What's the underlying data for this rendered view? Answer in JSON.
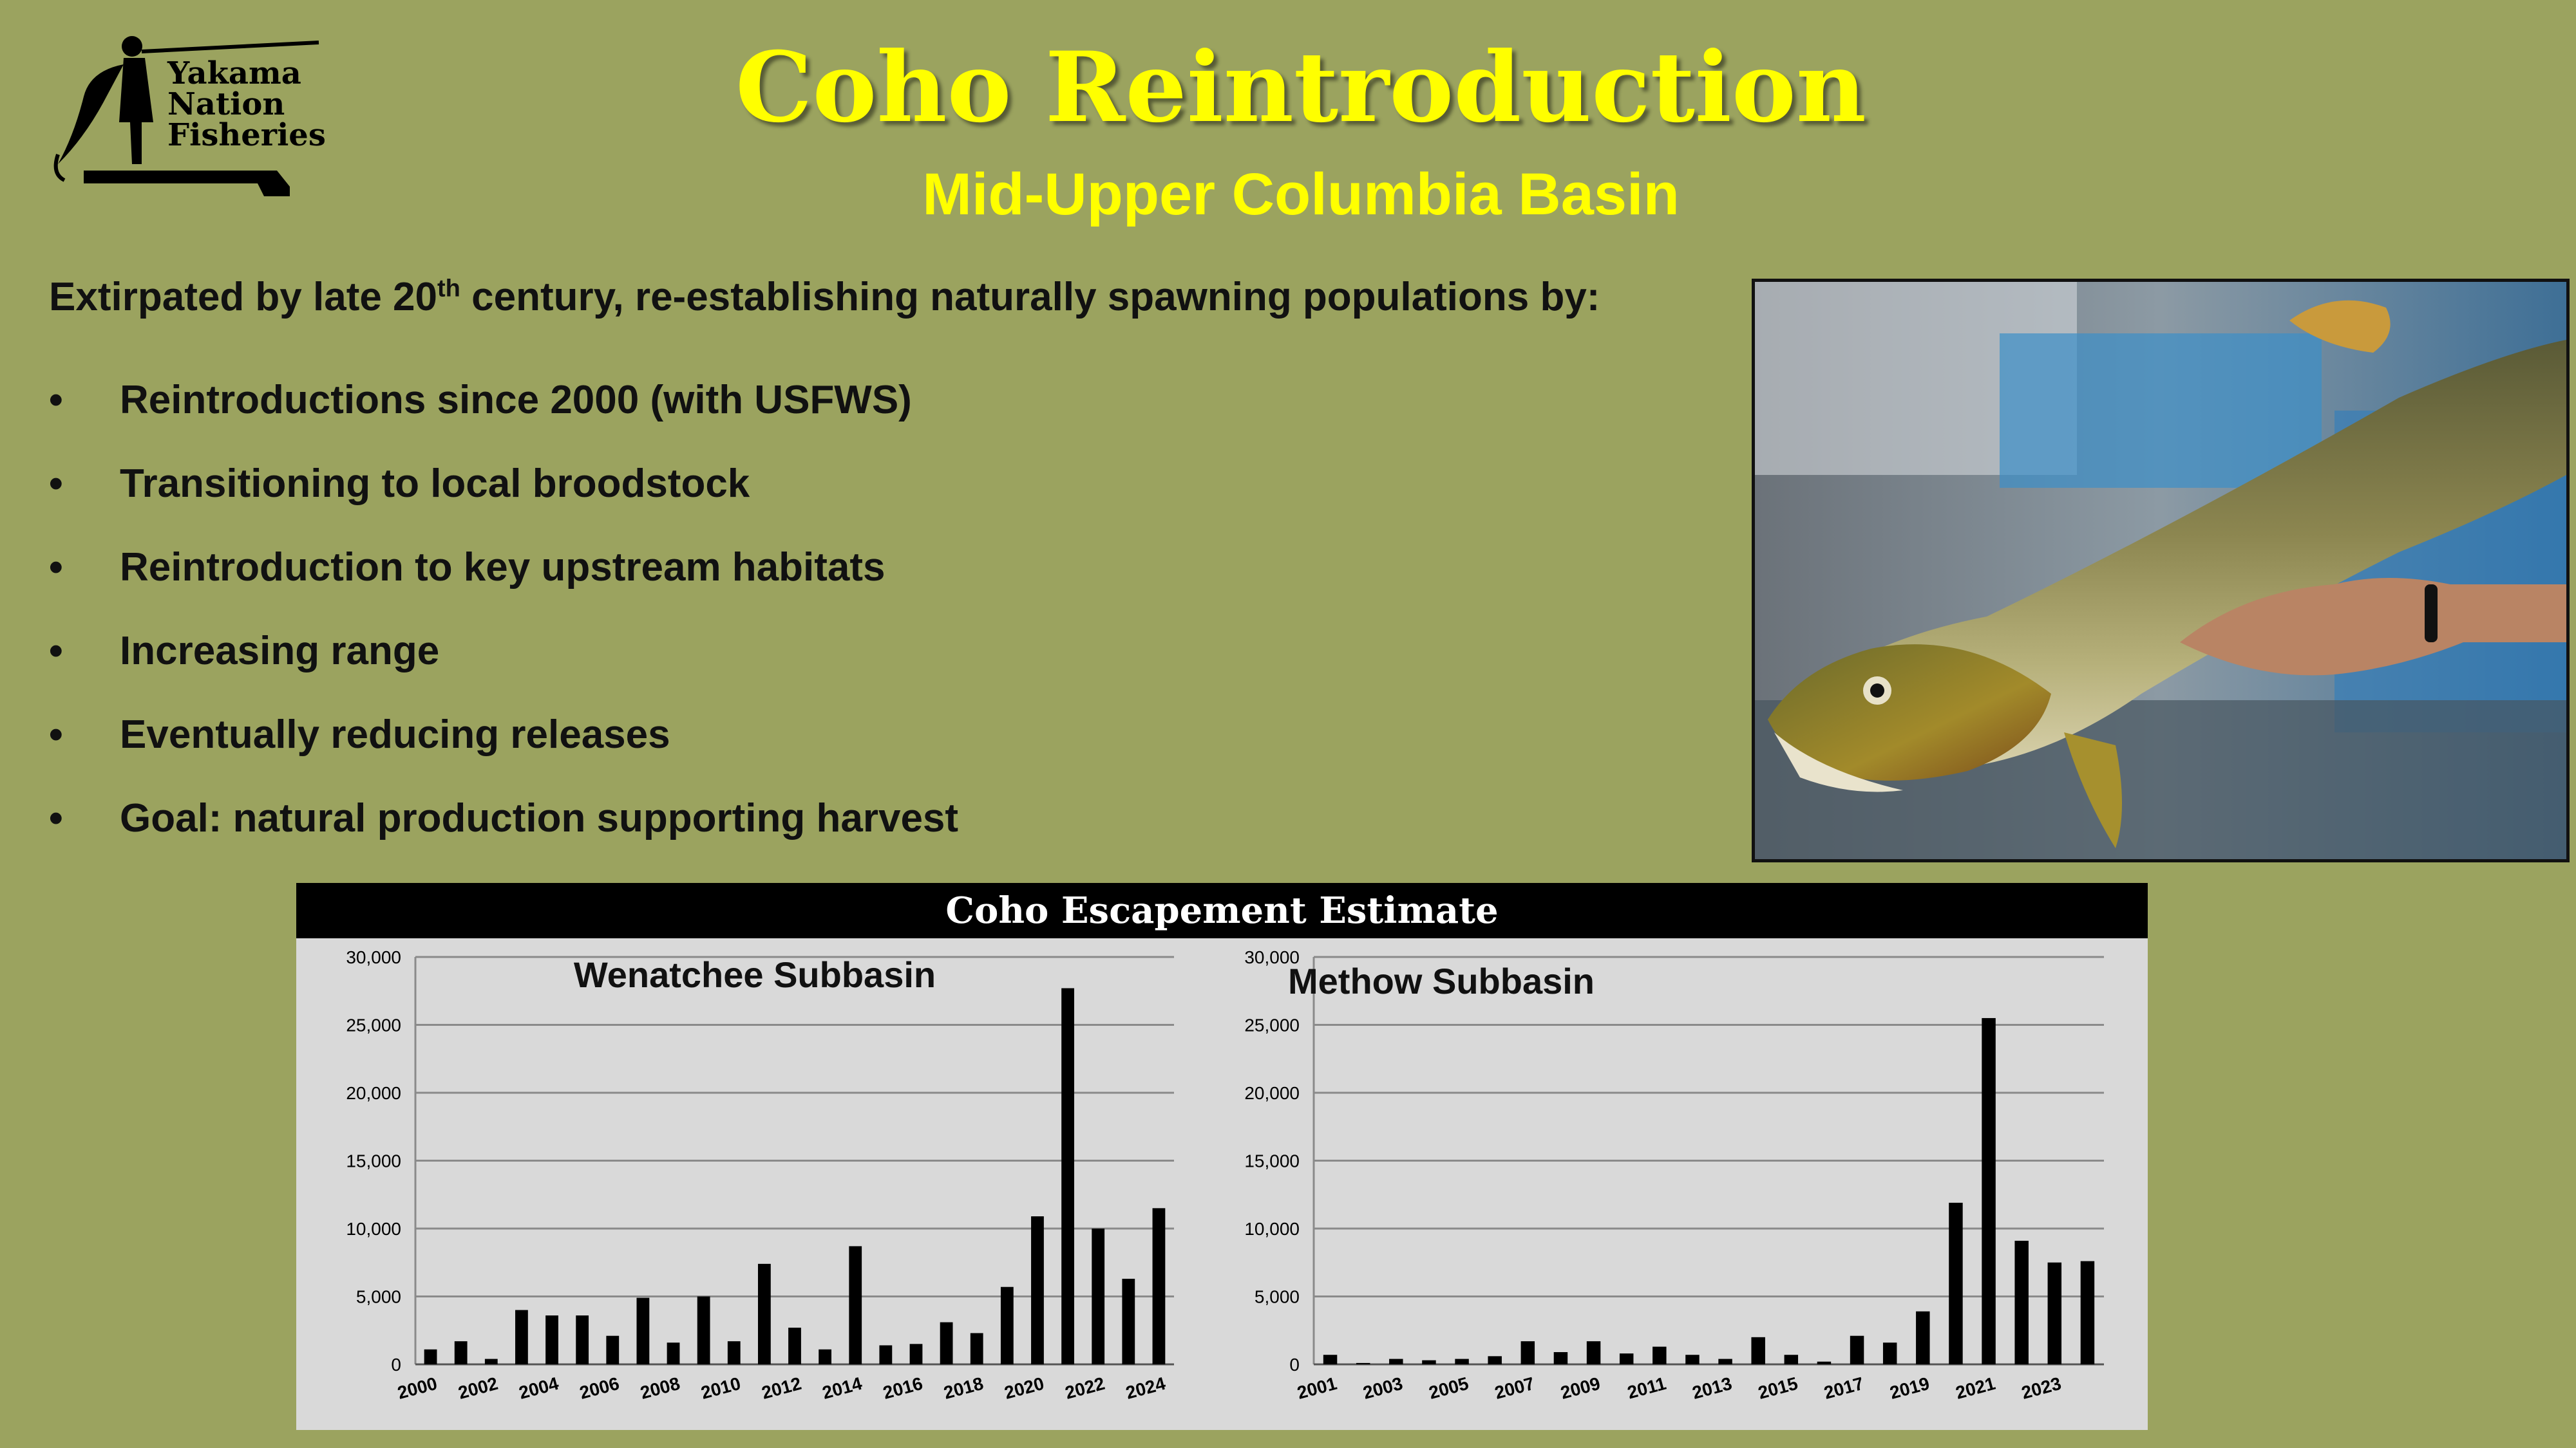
{
  "logo": {
    "lines": [
      "Yakama",
      "Nation",
      "Fisheries"
    ]
  },
  "slide": {
    "title": "Coho Reintroduction",
    "subtitle": "Mid-Upper Columbia Basin",
    "intro_pre": "Extirpated by late 20",
    "intro_sup": "th",
    "intro_post": " century, re-establishing naturally spawning populations by:",
    "bullet_marker": "•",
    "bullets": [
      "Reintroductions since 2000 (with USFWS)",
      "Transitioning to local broodstock",
      "Reintroduction to key upstream habitats",
      "Increasing range",
      "Eventually reducing releases",
      "Goal: natural production supporting harvest"
    ]
  },
  "chart_header": "Coho Escapement Estimate",
  "chart_data": [
    {
      "type": "bar",
      "title": "Wenatchee Subbasin",
      "categories": [
        "2000",
        "2001",
        "2002",
        "2003",
        "2004",
        "2005",
        "2006",
        "2007",
        "2008",
        "2009",
        "2010",
        "2011",
        "2012",
        "2013",
        "2014",
        "2015",
        "2016",
        "2017",
        "2018",
        "2019",
        "2020",
        "2021",
        "2022",
        "2023",
        "2024"
      ],
      "x_tick_labels": [
        "2000",
        "2002",
        "2004",
        "2006",
        "2008",
        "2010",
        "2012",
        "2014",
        "2016",
        "2018",
        "2020",
        "2022",
        "2024"
      ],
      "values": [
        1100,
        1700,
        400,
        4000,
        3600,
        3600,
        2100,
        4900,
        1600,
        5000,
        1700,
        7400,
        2700,
        1100,
        8700,
        1400,
        1500,
        3100,
        2300,
        5700,
        10900,
        27700,
        10000,
        6300,
        11500
      ],
      "ylim": [
        0,
        30000
      ],
      "y_ticks": [
        "0",
        "5,000",
        "10,000",
        "15,000",
        "20,000",
        "25,000",
        "30,000"
      ],
      "bar_color": "#000000",
      "grid": true
    },
    {
      "type": "bar",
      "title": "Methow Subbasin",
      "categories": [
        "2001",
        "2002",
        "2003",
        "2004",
        "2005",
        "2006",
        "2007",
        "2008",
        "2009",
        "2010",
        "2011",
        "2012",
        "2013",
        "2014",
        "2015",
        "2016",
        "2017",
        "2018",
        "2019",
        "2020",
        "2021",
        "2022",
        "2023",
        "2024"
      ],
      "x_tick_labels": [
        "2001",
        "2003",
        "2005",
        "2007",
        "2009",
        "2011",
        "2013",
        "2015",
        "2017",
        "2019",
        "2021",
        "2023"
      ],
      "values": [
        700,
        100,
        400,
        300,
        400,
        600,
        1700,
        900,
        1700,
        800,
        1300,
        700,
        400,
        2000,
        700,
        200,
        2100,
        1600,
        3900,
        11900,
        25500,
        9100,
        7500,
        7600
      ],
      "ylim": [
        0,
        30000
      ],
      "y_ticks": [
        "0",
        "5,000",
        "10,000",
        "15,000",
        "20,000",
        "25,000",
        "30,000"
      ],
      "bar_color": "#000000",
      "grid": true
    }
  ],
  "colors": {
    "background": "#9ba35f",
    "title": "#ffff00",
    "chart_panel": "#d9d9d9",
    "header_bar": "#000000"
  }
}
